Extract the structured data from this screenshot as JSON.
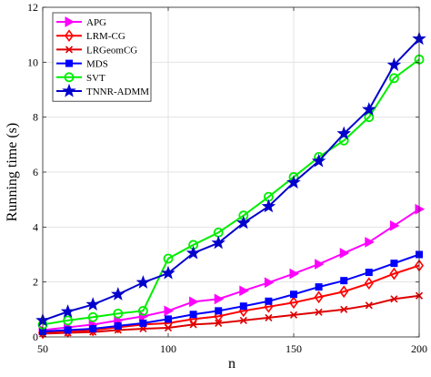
{
  "chart_data": {
    "type": "line",
    "xlabel": "n",
    "ylabel": "Running time (s)",
    "xlim": [
      50,
      200
    ],
    "ylim": [
      0,
      12
    ],
    "xticks": [
      50,
      100,
      150,
      200
    ],
    "yticks": [
      0,
      2,
      4,
      6,
      8,
      10,
      12
    ],
    "grid": true,
    "legend_position": "top-left",
    "x": [
      50,
      60,
      70,
      80,
      90,
      100,
      110,
      120,
      130,
      140,
      150,
      160,
      170,
      180,
      190,
      200
    ],
    "series": [
      {
        "name": "APG",
        "color": "#ff00ff",
        "marker": "triangle-right",
        "values": [
          0.25,
          0.35,
          0.45,
          0.6,
          0.75,
          0.95,
          1.28,
          1.38,
          1.68,
          1.98,
          2.3,
          2.65,
          3.05,
          3.45,
          4.05,
          4.65
        ]
      },
      {
        "name": "LRM-CG",
        "color": "#ff0000",
        "marker": "diamond",
        "values": [
          0.15,
          0.2,
          0.25,
          0.35,
          0.45,
          0.5,
          0.65,
          0.75,
          0.95,
          1.1,
          1.25,
          1.45,
          1.65,
          1.95,
          2.3,
          2.6
        ]
      },
      {
        "name": "LRGeomCG",
        "color": "#dd0000",
        "marker": "x",
        "values": [
          0.12,
          0.15,
          0.18,
          0.25,
          0.3,
          0.33,
          0.45,
          0.5,
          0.6,
          0.7,
          0.8,
          0.9,
          1.0,
          1.15,
          1.38,
          1.5
        ]
      },
      {
        "name": "MDS",
        "color": "#0000ff",
        "marker": "square",
        "values": [
          0.2,
          0.25,
          0.3,
          0.4,
          0.5,
          0.65,
          0.82,
          0.95,
          1.12,
          1.3,
          1.55,
          1.82,
          2.05,
          2.35,
          2.68,
          3.0
        ]
      },
      {
        "name": "SVT",
        "color": "#00ee00",
        "marker": "circle",
        "values": [
          0.45,
          0.6,
          0.72,
          0.85,
          0.95,
          2.85,
          3.35,
          3.8,
          4.42,
          5.1,
          5.82,
          6.55,
          7.15,
          8.0,
          9.42,
          10.1
        ]
      },
      {
        "name": "TNNR-ADMM",
        "color": "#0000cc",
        "marker": "star",
        "values": [
          0.6,
          0.92,
          1.18,
          1.55,
          1.98,
          2.32,
          3.05,
          3.42,
          4.15,
          4.75,
          5.62,
          6.4,
          7.4,
          8.28,
          9.9,
          10.85
        ]
      }
    ]
  }
}
